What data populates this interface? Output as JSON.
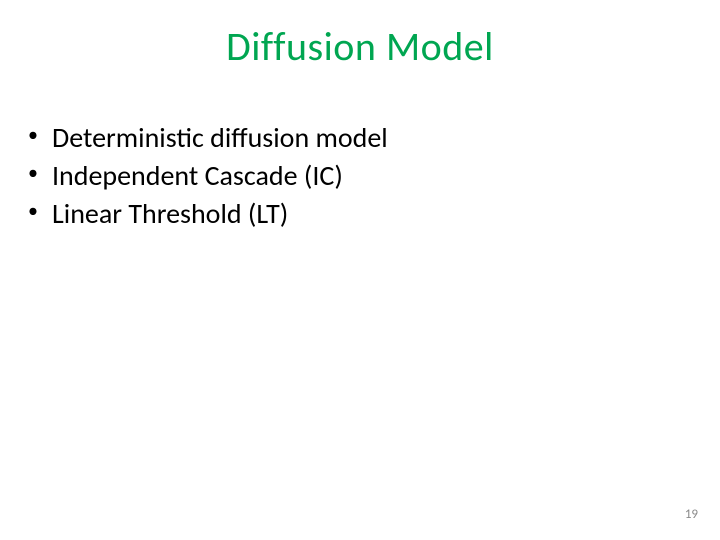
{
  "slide": {
    "title": "Diffusion Model",
    "title_color": "#00a651",
    "bullets": [
      "Deterministic diffusion model",
      "Independent Cascade (IC)",
      "Linear Threshold  (LT)"
    ],
    "bullet_color": "#000000",
    "page_number": "19",
    "page_number_color": "#8a8a8a",
    "background_color": "#ffffff",
    "title_fontsize": 40,
    "body_fontsize": 28,
    "page_number_fontsize": 13
  }
}
